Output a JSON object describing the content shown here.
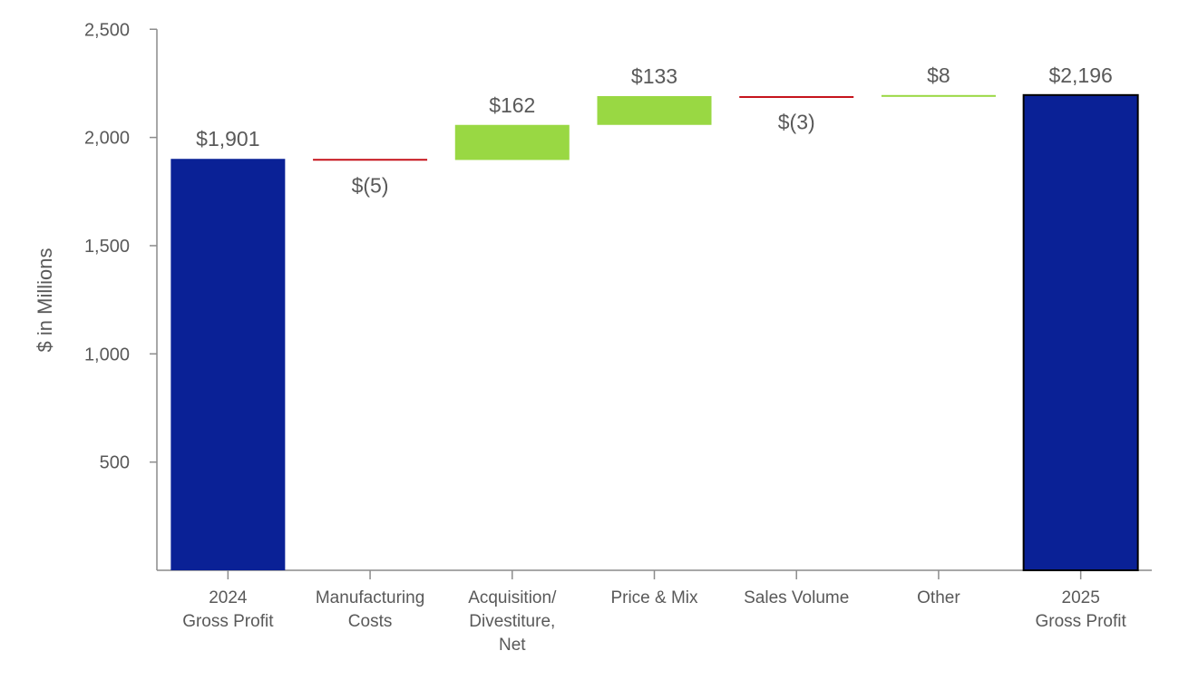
{
  "chart_data": {
    "type": "bar",
    "subtype": "waterfall",
    "title": "",
    "xlabel": "",
    "ylabel": "$ in Millions",
    "ylim": [
      0,
      2500
    ],
    "yticks": [
      500,
      1000,
      1500,
      2000,
      2500
    ],
    "ytick_labels": [
      "500",
      "1,000",
      "1,500",
      "2,000",
      "2,500"
    ],
    "grid": false,
    "legend": "none",
    "categories": [
      [
        "2024",
        "Gross Profit"
      ],
      [
        "Manufacturing",
        "Costs"
      ],
      [
        "Acquisition/",
        "Divestiture,",
        "Net"
      ],
      [
        "Price & Mix"
      ],
      [
        "Sales Volume"
      ],
      [
        "Other"
      ],
      [
        "2025",
        "Gross Profit"
      ]
    ],
    "bars": [
      {
        "kind": "total",
        "value": 1901,
        "label": "$1,901"
      },
      {
        "kind": "delta",
        "value": -5,
        "label": "$(5)"
      },
      {
        "kind": "delta",
        "value": 162,
        "label": "$162"
      },
      {
        "kind": "delta",
        "value": 133,
        "label": "$133"
      },
      {
        "kind": "delta",
        "value": -3,
        "label": "$(3)"
      },
      {
        "kind": "delta",
        "value": 8,
        "label": "$8"
      },
      {
        "kind": "total",
        "value": 2196,
        "label": "$2,196"
      }
    ],
    "colors": {
      "total": "#0a2196",
      "total_last_outline": "#000000",
      "increase": "#99d843",
      "decrease": "#c6141c",
      "axis": "#8c8c8c",
      "text": "#595959"
    }
  }
}
